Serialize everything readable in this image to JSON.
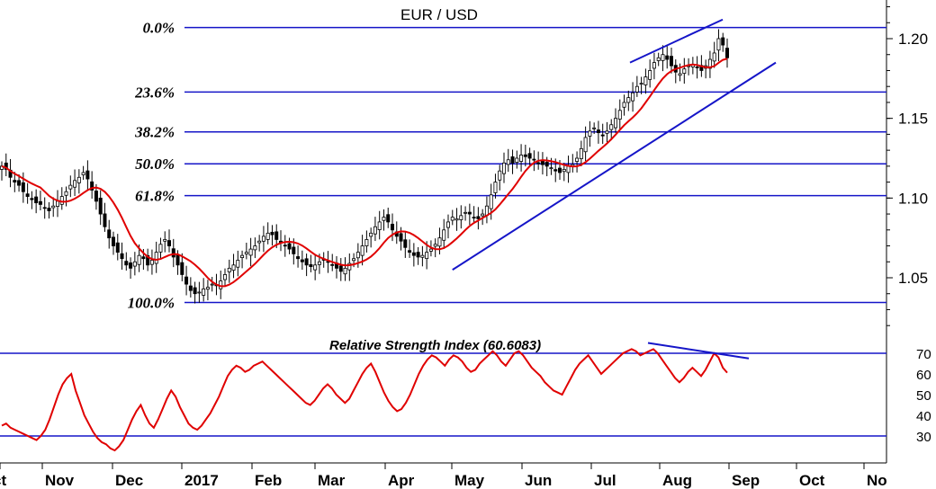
{
  "chart_data": [
    {
      "type": "candlestick",
      "title": "EUR / USD",
      "ylim": [
        1.02,
        1.225
      ],
      "yticks": [
        1.05,
        1.1,
        1.15,
        1.2
      ],
      "ytick_labels": [
        "1.05",
        "1.10",
        "1.15",
        "1.20"
      ],
      "xtick_labels": [
        "ct",
        "Nov",
        "Dec",
        "2017",
        "Feb",
        "Mar",
        "Apr",
        "May",
        "Jun",
        "Jul",
        "Aug",
        "Sep",
        "Oct",
        "No"
      ],
      "fibonacci_levels": [
        {
          "label": "0.0%",
          "value": 1.207
        },
        {
          "label": "23.6%",
          "value": 1.1665
        },
        {
          "label": "38.2%",
          "value": 1.1415
        },
        {
          "label": "50.0%",
          "value": 1.1215
        },
        {
          "label": "61.8%",
          "value": 1.1015
        },
        {
          "label": "100.0%",
          "value": 1.0345
        }
      ],
      "close_series": [
        1.12,
        1.118,
        1.113,
        1.11,
        1.108,
        1.104,
        1.101,
        1.099,
        1.097,
        1.096,
        1.094,
        1.092,
        1.095,
        1.098,
        1.101,
        1.104,
        1.108,
        1.111,
        1.113,
        1.116,
        1.112,
        1.105,
        1.098,
        1.09,
        1.082,
        1.075,
        1.07,
        1.066,
        1.062,
        1.058,
        1.056,
        1.06,
        1.064,
        1.062,
        1.058,
        1.061,
        1.066,
        1.071,
        1.074,
        1.07,
        1.063,
        1.058,
        1.052,
        1.046,
        1.042,
        1.04,
        1.041,
        1.043,
        1.044,
        1.046,
        1.045,
        1.048,
        1.052,
        1.056,
        1.058,
        1.061,
        1.064,
        1.066,
        1.068,
        1.07,
        1.073,
        1.076,
        1.078,
        1.077,
        1.074,
        1.072,
        1.07,
        1.068,
        1.065,
        1.062,
        1.06,
        1.058,
        1.057,
        1.058,
        1.06,
        1.061,
        1.06,
        1.058,
        1.056,
        1.054,
        1.056,
        1.059,
        1.062,
        1.066,
        1.07,
        1.074,
        1.078,
        1.082,
        1.085,
        1.088,
        1.085,
        1.08,
        1.076,
        1.073,
        1.069,
        1.066,
        1.064,
        1.063,
        1.064,
        1.066,
        1.068,
        1.071,
        1.075,
        1.08,
        1.085,
        1.088,
        1.087,
        1.089,
        1.091,
        1.09,
        1.088,
        1.087,
        1.09,
        1.095,
        1.102,
        1.11,
        1.117,
        1.122,
        1.124,
        1.122,
        1.125,
        1.127,
        1.126,
        1.125,
        1.124,
        1.122,
        1.121,
        1.12,
        1.119,
        1.117,
        1.116,
        1.118,
        1.12,
        1.121,
        1.125,
        1.131,
        1.138,
        1.142,
        1.144,
        1.141,
        1.139,
        1.142,
        1.146,
        1.15,
        1.155,
        1.16,
        1.163,
        1.166,
        1.17,
        1.172,
        1.176,
        1.18,
        1.185,
        1.188,
        1.19,
        1.187,
        1.183,
        1.179,
        1.178,
        1.181,
        1.183,
        1.184,
        1.182,
        1.18,
        1.183,
        1.187,
        1.191,
        1.2,
        1.196,
        1.188
      ],
      "series": [
        {
          "name": "",
          "color": "#e00000"
        }
      ],
      "trendlines_color": "#1515c8"
    },
    {
      "type": "line",
      "title": "Relative Strength Index (60.6083)",
      "ylim": [
        22,
        78
      ],
      "yticks": [
        30,
        40,
        50,
        60,
        70
      ],
      "ytick_labels": [
        "30",
        "40",
        "50",
        "60",
        "70"
      ],
      "reference_lines": [
        70,
        30
      ],
      "values": [
        35,
        36,
        34,
        33,
        32,
        31,
        30,
        29,
        28,
        30,
        33,
        38,
        44,
        50,
        55,
        58,
        60,
        52,
        46,
        40,
        36,
        32,
        29,
        27,
        26,
        24,
        23,
        25,
        28,
        33,
        38,
        42,
        45,
        40,
        36,
        34,
        38,
        43,
        48,
        52,
        49,
        44,
        40,
        36,
        34,
        33,
        35,
        38,
        41,
        45,
        49,
        54,
        59,
        62,
        64,
        63,
        61,
        62,
        64,
        65,
        66,
        64,
        62,
        60,
        58,
        56,
        54,
        52,
        50,
        48,
        46,
        45,
        47,
        50,
        53,
        55,
        53,
        50,
        48,
        46,
        48,
        52,
        56,
        60,
        63,
        65,
        61,
        56,
        51,
        47,
        44,
        42,
        43,
        46,
        50,
        55,
        60,
        64,
        67,
        69,
        68,
        66,
        64,
        67,
        69,
        68,
        66,
        63,
        61,
        62,
        65,
        67,
        69,
        71,
        69,
        66,
        64,
        67,
        70,
        71,
        69,
        66,
        63,
        61,
        59,
        56,
        54,
        52,
        51,
        50,
        54,
        58,
        62,
        65,
        67,
        69,
        66,
        63,
        60,
        62,
        64,
        66,
        68,
        70,
        71,
        72,
        71,
        69,
        70,
        71,
        72,
        70,
        67,
        64,
        61,
        58,
        56,
        58,
        61,
        63,
        61,
        59,
        62,
        66,
        70,
        68,
        63,
        60.6
      ],
      "line_color": "#e00000"
    }
  ]
}
